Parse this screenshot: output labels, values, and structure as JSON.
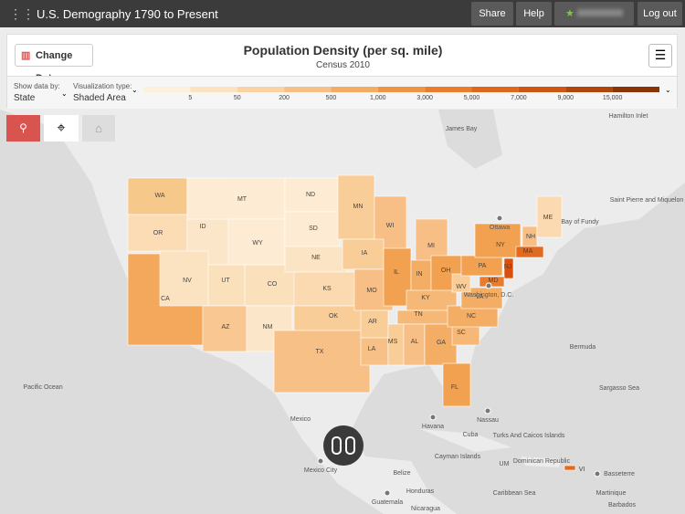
{
  "header": {
    "title": "U.S. Demography 1790 to Present",
    "share": "Share",
    "help": "Help",
    "logout": "Log out"
  },
  "panel": {
    "change_data": "Change Data",
    "title": "Population Density (per sq. mile)",
    "subtitle": "Census 2010",
    "show_by_label": "Show data by:",
    "show_by_value": "State",
    "viz_label": "Visualization type:",
    "viz_value": "Shaded Area"
  },
  "legend": {
    "colors": [
      "#fdf0dc",
      "#fbe3c2",
      "#f9d3a3",
      "#f7c086",
      "#f4ab62",
      "#f19442",
      "#ec7b2a",
      "#e0661a",
      "#cf5510",
      "#b24509",
      "#8a3406"
    ],
    "labels": [
      "5",
      "50",
      "200",
      "500",
      "1,000",
      "3,000",
      "5,000",
      "7,000",
      "9,000",
      "15,000"
    ]
  },
  "states": [
    {
      "label": "WA",
      "color": "#f6c98b"
    },
    {
      "label": "OR",
      "color": "#fbdcb4"
    },
    {
      "label": "CA",
      "color": "#f3a85c"
    },
    {
      "label": "ID",
      "color": "#fce6c9"
    },
    {
      "label": "NV",
      "color": "#fbe2c0"
    },
    {
      "label": "MT",
      "color": "#fdebd3"
    },
    {
      "label": "WY",
      "color": "#fdebd3"
    },
    {
      "label": "UT",
      "color": "#fbe0bc"
    },
    {
      "label": "CO",
      "color": "#fbe0bc"
    },
    {
      "label": "AZ",
      "color": "#f8c792"
    },
    {
      "label": "NM",
      "color": "#fce6c9"
    },
    {
      "label": "ND",
      "color": "#fdebd3"
    },
    {
      "label": "SD",
      "color": "#fdebd3"
    },
    {
      "label": "NE",
      "color": "#fbe4c3"
    },
    {
      "label": "KS",
      "color": "#fbd9b1"
    },
    {
      "label": "OK",
      "color": "#f9cd98"
    },
    {
      "label": "TX",
      "color": "#f7c087"
    },
    {
      "label": "MN",
      "color": "#f9cd98"
    },
    {
      "label": "WI",
      "color": "#f7bf86"
    },
    {
      "label": "IA",
      "color": "#f9cd98"
    },
    {
      "label": "MO",
      "color": "#f7bf86"
    },
    {
      "label": "AR",
      "color": "#f9cd98"
    },
    {
      "label": "LA",
      "color": "#f7c087"
    },
    {
      "label": "IL",
      "color": "#f2a150"
    },
    {
      "label": "MI",
      "color": "#f7bf86"
    },
    {
      "label": "IN",
      "color": "#f4ad65"
    },
    {
      "label": "OH",
      "color": "#f2a150"
    },
    {
      "label": "KY",
      "color": "#f6b876"
    },
    {
      "label": "TN",
      "color": "#f6b876"
    },
    {
      "label": "MS",
      "color": "#f9cd98"
    },
    {
      "label": "AL",
      "color": "#f7bf86"
    },
    {
      "label": "GA",
      "color": "#f4ad65"
    },
    {
      "label": "FL",
      "color": "#f2a150"
    },
    {
      "label": "SC",
      "color": "#f6b876"
    },
    {
      "label": "NC",
      "color": "#f4ad65"
    },
    {
      "label": "VA",
      "color": "#f4ad65"
    },
    {
      "label": "WV",
      "color": "#f9cd98"
    },
    {
      "label": "PA",
      "color": "#f2a150"
    },
    {
      "label": "NY",
      "color": "#f2a150"
    },
    {
      "label": "NJ",
      "color": "#d9500e"
    },
    {
      "label": "MD",
      "color": "#e87b2d"
    },
    {
      "label": "NH",
      "color": "#f7bf86"
    },
    {
      "label": "ME",
      "color": "#fbd9b1"
    },
    {
      "label": "MA",
      "color": "#e06a20"
    },
    {
      "label": "VI",
      "color": "#e06a20"
    }
  ],
  "places": [
    "James Bay",
    "Hamilton Inlet",
    "Saint Pierre and Miquelon",
    "Bay of Fundy",
    "Ottawa",
    "Washington, D.C.",
    "Bermuda",
    "Pacific Ocean",
    "Sargasso Sea",
    "Mexico",
    "Nassau",
    "Havana",
    "Cuba",
    "Turks And Caicos Islands",
    "Cayman Islands",
    "Dominican Republic",
    "UM",
    "Basseterre",
    "Mexico City",
    "Belize",
    "Caribbean Sea",
    "Martinique",
    "Honduras",
    "Guatemala",
    "Nicaragua",
    "Barbados"
  ]
}
